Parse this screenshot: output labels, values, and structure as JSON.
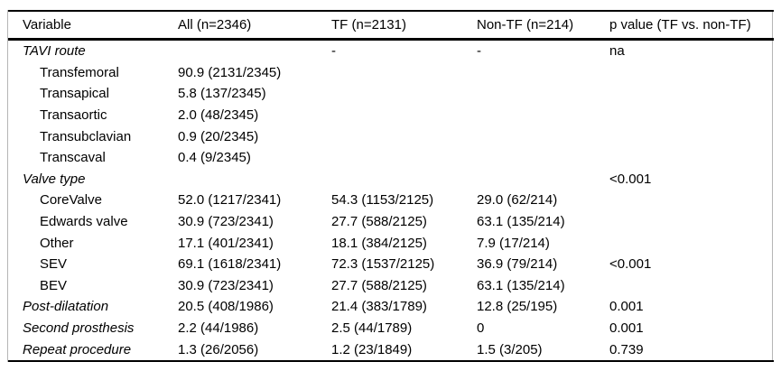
{
  "table": {
    "columns": [
      "Variable",
      "All (n=2346)",
      "TF (n=2131)",
      "Non-TF (n=214)",
      "p value (TF vs. non-TF)"
    ],
    "rows": [
      {
        "variable": "TAVI route",
        "level": "section",
        "all": "",
        "tf": "-",
        "non_tf": "-",
        "p_value": "na"
      },
      {
        "variable": "Transfemoral",
        "level": "sub",
        "all": "90.9 (2131/2345)",
        "tf": "",
        "non_tf": "",
        "p_value": ""
      },
      {
        "variable": "Transapical",
        "level": "sub",
        "all": "5.8 (137/2345)",
        "tf": "",
        "non_tf": "",
        "p_value": ""
      },
      {
        "variable": "Transaortic",
        "level": "sub",
        "all": "2.0 (48/2345)",
        "tf": "",
        "non_tf": "",
        "p_value": ""
      },
      {
        "variable": "Transubclavian",
        "level": "sub",
        "all": "0.9 (20/2345)",
        "tf": "",
        "non_tf": "",
        "p_value": ""
      },
      {
        "variable": "Transcaval",
        "level": "sub",
        "all": "0.4 (9/2345)",
        "tf": "",
        "non_tf": "",
        "p_value": ""
      },
      {
        "variable": "Valve type",
        "level": "section",
        "all": "",
        "tf": "",
        "non_tf": "",
        "p_value": "<0.001"
      },
      {
        "variable": "CoreValve",
        "level": "sub",
        "all": "52.0 (1217/2341)",
        "tf": "54.3 (1153/2125)",
        "non_tf": "29.0 (62/214)",
        "p_value": ""
      },
      {
        "variable": "Edwards valve",
        "level": "sub",
        "all": "30.9 (723/2341)",
        "tf": "27.7 (588/2125)",
        "non_tf": "63.1 (135/214)",
        "p_value": ""
      },
      {
        "variable": "Other",
        "level": "sub",
        "all": "17.1 (401/2341)",
        "tf": "18.1 (384/2125)",
        "non_tf": "7.9 (17/214)",
        "p_value": ""
      },
      {
        "variable": "SEV",
        "level": "sub",
        "all": "69.1 (1618/2341)",
        "tf": "72.3 (1537/2125)",
        "non_tf": "36.9 (79/214)",
        "p_value": "<0.001"
      },
      {
        "variable": "BEV",
        "level": "sub",
        "all": "30.9 (723/2341)",
        "tf": "27.7 (588/2125)",
        "non_tf": "63.1 (135/214)",
        "p_value": ""
      },
      {
        "variable": "Post-dilatation",
        "level": "section",
        "all": "20.5 (408/1986)",
        "tf": "21.4 (383/1789)",
        "non_tf": "12.8 (25/195)",
        "p_value": "0.001"
      },
      {
        "variable": "Second prosthesis",
        "level": "section",
        "all": "2.2 (44/1986)",
        "tf": "2.5 (44/1789)",
        "non_tf": "0",
        "p_value": "0.001"
      },
      {
        "variable": "Repeat procedure",
        "level": "section",
        "all": "1.3 (26/2056)",
        "tf": "1.2 (23/1849)",
        "non_tf": "1.5 (3/205)",
        "p_value": "0.739"
      }
    ]
  }
}
